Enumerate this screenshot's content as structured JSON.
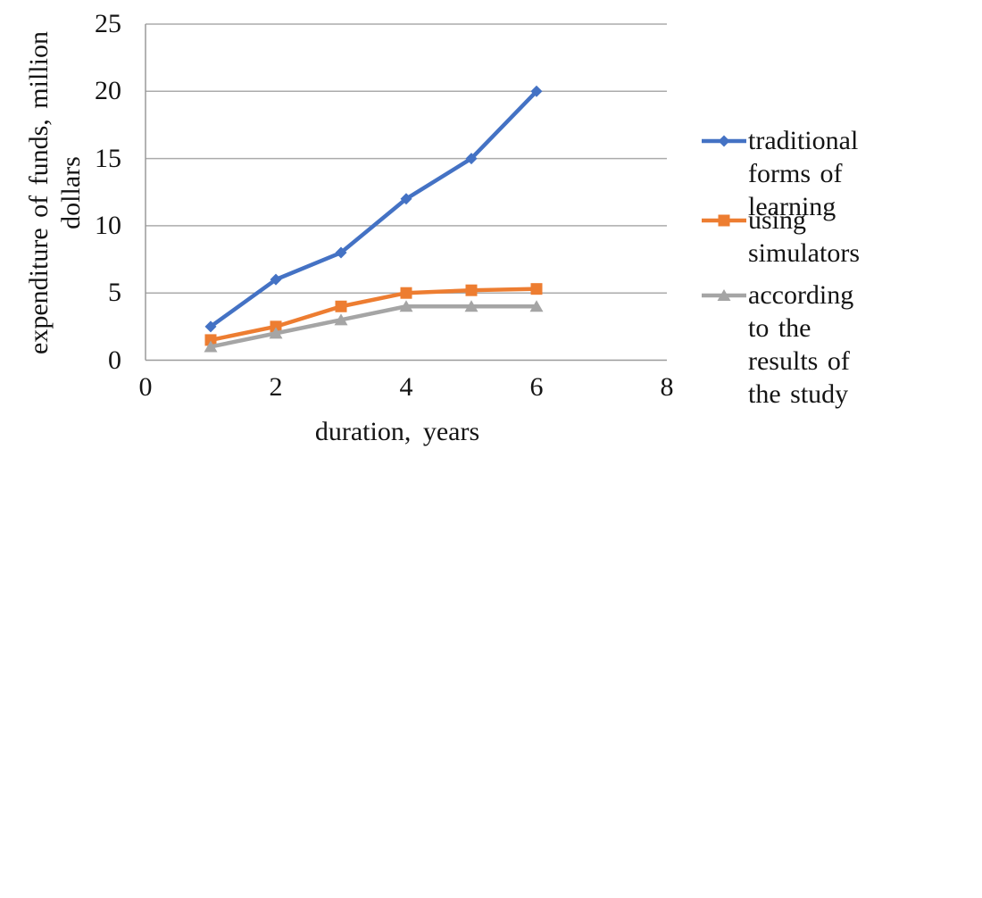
{
  "colors": {
    "gridline": "#ababab",
    "axis": "#9a9a9a",
    "text": "#141414",
    "series_blue": "#4472C4",
    "series_orange": "#ED7D31",
    "series_gray": "#A5A5A5"
  },
  "chart_data": {
    "type": "line",
    "x": [
      1,
      2,
      3,
      4,
      5,
      6
    ],
    "series": [
      {
        "name": "traditional forms of learning",
        "color": "#4472C4",
        "marker": "diamond",
        "values": [
          2.5,
          6,
          8,
          12,
          15,
          20
        ]
      },
      {
        "name": "using simulators",
        "color": "#ED7D31",
        "marker": "square",
        "values": [
          1.5,
          2.5,
          4,
          5,
          5.2,
          5.3
        ]
      },
      {
        "name": "according to the results of the study",
        "color": "#A5A5A5",
        "marker": "triangle",
        "values": [
          1,
          2,
          3,
          4,
          4,
          4
        ]
      }
    ],
    "title": "",
    "xlabel": "duration, years",
    "ylabel": "expenditure of funds, million dollars",
    "ylabel_lines": [
      "expenditure of funds, million",
      "dollars"
    ],
    "xlim": [
      0,
      8
    ],
    "ylim": [
      0,
      25
    ],
    "xticks": [
      0,
      2,
      4,
      6,
      8
    ],
    "yticks": [
      0,
      5,
      10,
      15,
      20,
      25
    ],
    "grid": "horizontal",
    "legend_position": "right",
    "legend": [
      {
        "lines": [
          "traditional forms of",
          "learning"
        ]
      },
      {
        "lines": [
          "using simulators"
        ]
      },
      {
        "lines": [
          "according to the",
          "results of the study"
        ]
      }
    ]
  }
}
